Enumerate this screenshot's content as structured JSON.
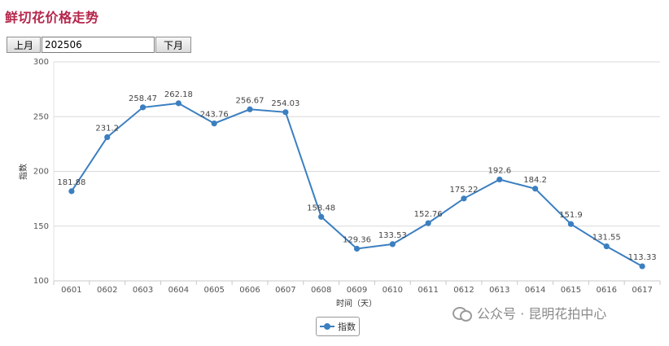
{
  "page": {
    "title": "鲜切花价格走势"
  },
  "controls": {
    "prev_label": "上月",
    "month_value": "202506",
    "next_label": "下月"
  },
  "legend": {
    "label": "指数"
  },
  "watermark": {
    "text": "公众号 · 昆明花拍中心",
    "icon": "wechat-icon"
  },
  "colors": {
    "line": "#3b7fc0",
    "title": "#b5254a",
    "grid": "#d9d9d9"
  },
  "chart_data": {
    "type": "line",
    "title": "",
    "xlabel": "时间（天）",
    "ylabel": "指数",
    "ylim": [
      100,
      300
    ],
    "yticks": [
      100,
      150,
      200,
      250,
      300
    ],
    "grid": true,
    "legend_position": "bottom-center",
    "categories": [
      "0601",
      "0602",
      "0603",
      "0604",
      "0605",
      "0606",
      "0607",
      "0608",
      "0609",
      "0610",
      "0611",
      "0612",
      "0613",
      "0614",
      "0615",
      "0616",
      "0617"
    ],
    "series": [
      {
        "name": "指数",
        "values": [
          181.88,
          231.2,
          258.47,
          262.18,
          243.76,
          256.67,
          254.03,
          158.48,
          129.36,
          133.53,
          152.76,
          175.22,
          192.6,
          184.2,
          151.9,
          131.55,
          113.33
        ],
        "labels": [
          "181.88",
          "231.2",
          "258.47",
          "262.18",
          "243.76",
          "256.67",
          "254.03",
          "158.48",
          "129.36",
          "133.53",
          "152.76",
          "175.22",
          "192.6",
          "184.2",
          "151.9",
          "131.55",
          "113.33"
        ]
      }
    ]
  }
}
